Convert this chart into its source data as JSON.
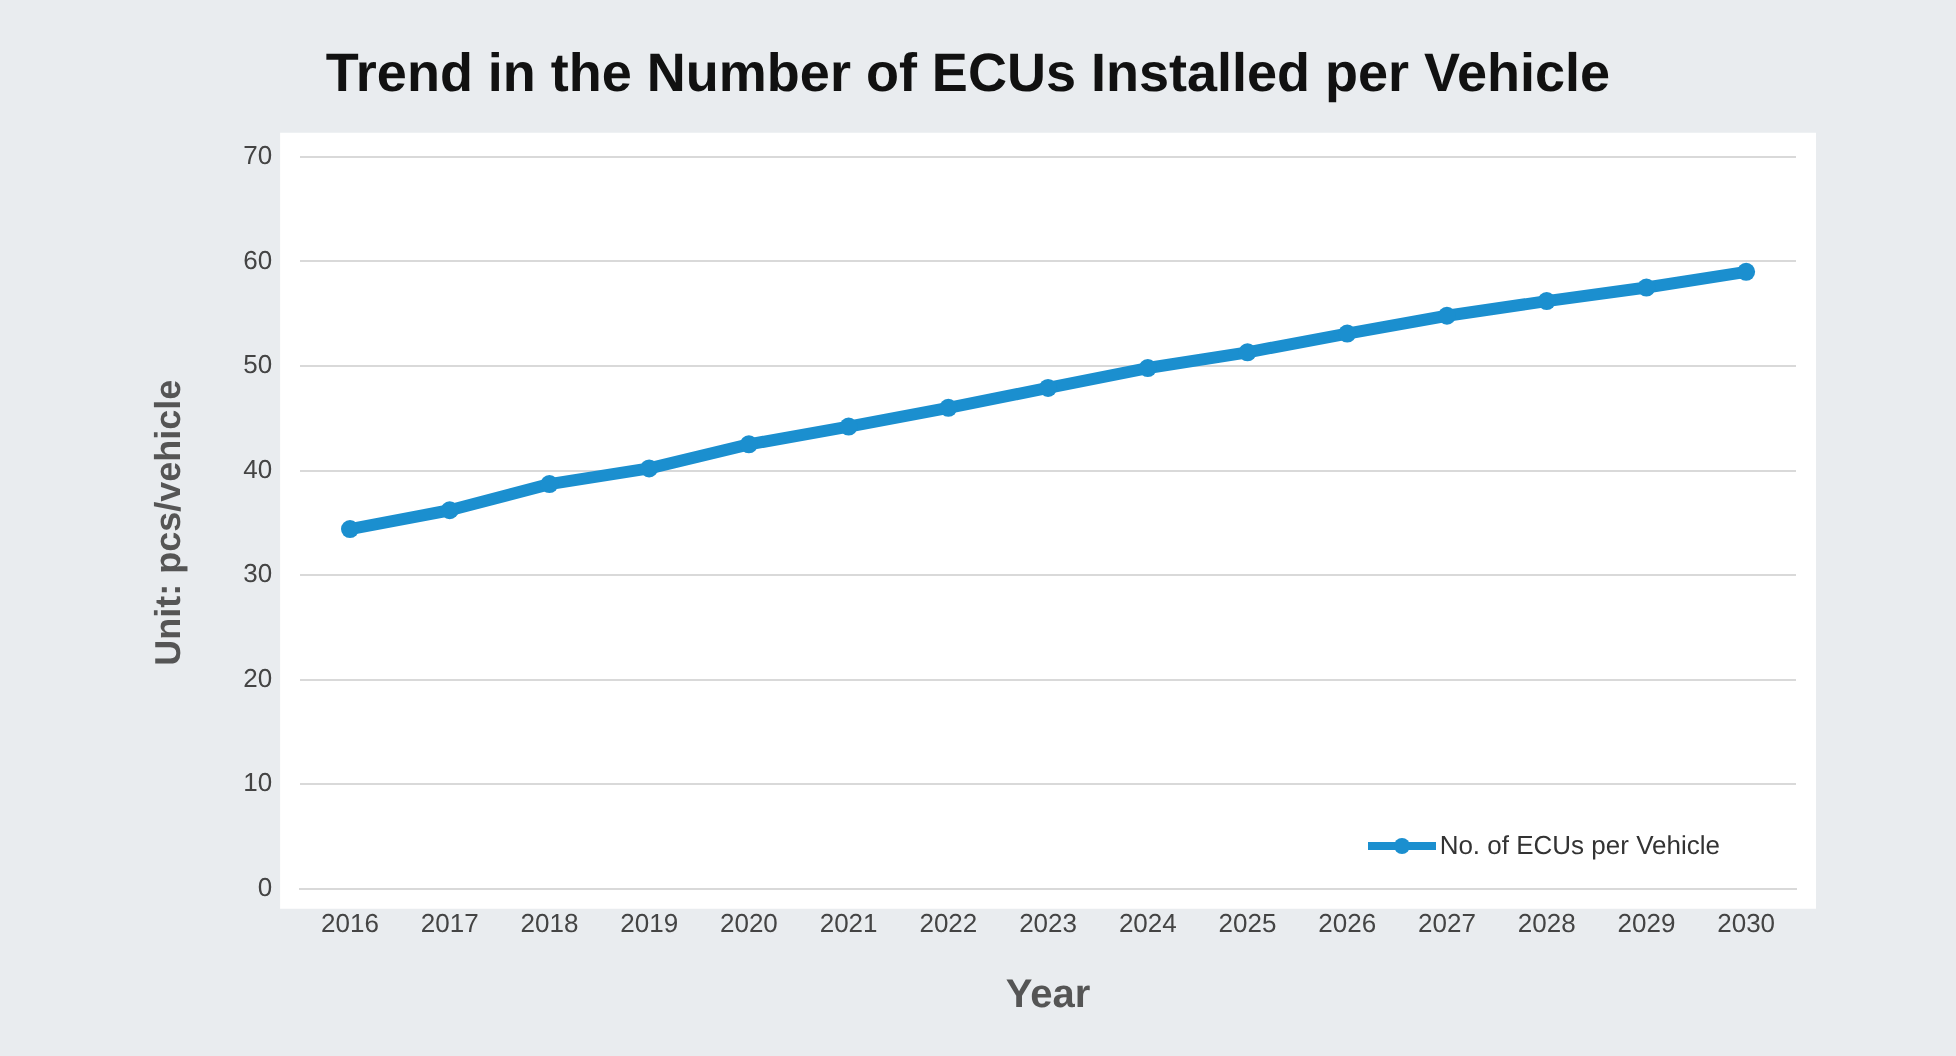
{
  "chart_data": {
    "type": "line",
    "title": "Trend in the Number of ECUs Installed per Vehicle",
    "xlabel": "Year",
    "ylabel": "Unit: pcs/vehicle",
    "categories": [
      "2016",
      "2017",
      "2018",
      "2019",
      "2020",
      "2021",
      "2022",
      "2023",
      "2024",
      "2025",
      "2026",
      "2027",
      "2028",
      "2029",
      "2030"
    ],
    "series": [
      {
        "name": "No. of ECUs per Vehicle",
        "color": "#1b8fcf",
        "values": [
          34.4,
          36.2,
          38.7,
          40.2,
          42.5,
          44.2,
          46.0,
          47.9,
          49.8,
          51.3,
          53.1,
          54.8,
          56.2,
          57.5,
          59.0
        ]
      }
    ],
    "ylim": [
      0,
      70
    ],
    "yticks": [
      0,
      10,
      20,
      30,
      40,
      50,
      60,
      70
    ],
    "grid": "y",
    "legend": "bottom right",
    "marker": "circle",
    "line_style": "solid"
  }
}
